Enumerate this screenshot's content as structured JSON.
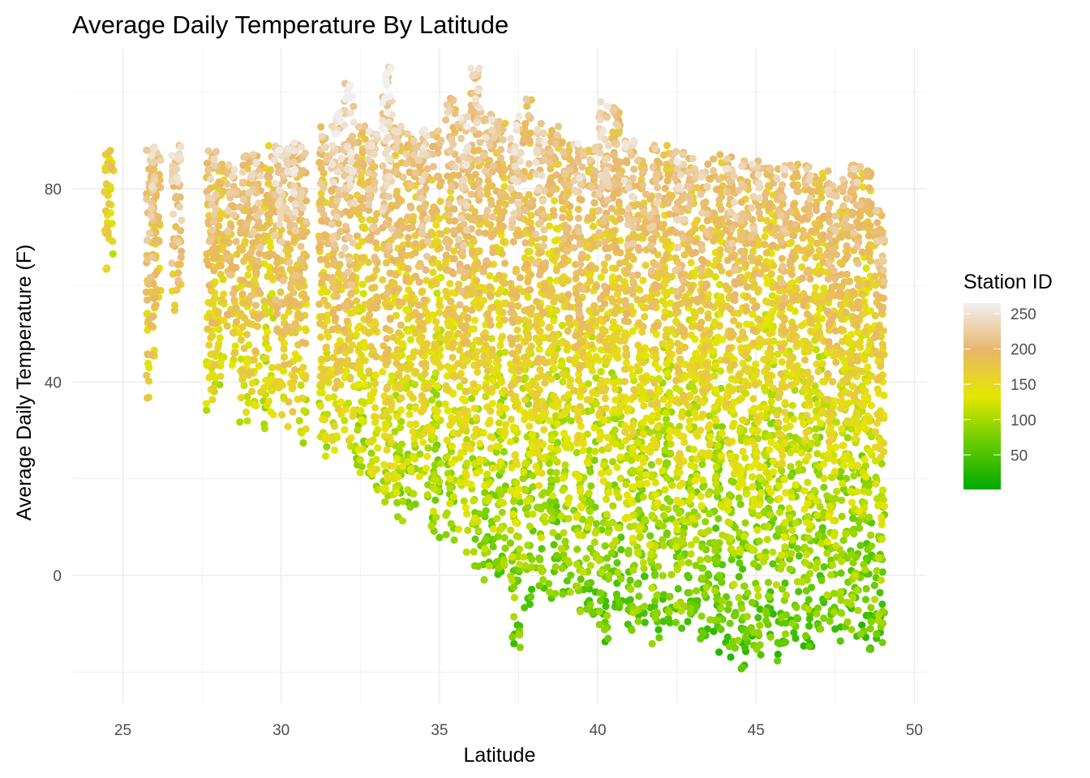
{
  "chart_data": {
    "type": "scatter",
    "title": "Average Daily Temperature By Latitude",
    "xlabel": "Latitude",
    "ylabel": "Average Daily Temperature (F)",
    "xlim": [
      23.4,
      50.4
    ],
    "ylim": [
      -26.5,
      109
    ],
    "x_ticks": [
      25,
      30,
      35,
      40,
      45,
      50
    ],
    "y_ticks": [
      0,
      40,
      80
    ],
    "grid": true,
    "legend": {
      "title": "Station ID",
      "placement": "right",
      "ticks": [
        50,
        100,
        150,
        200,
        250
      ],
      "range": [
        1,
        265
      ],
      "colors": [
        "#00aa00",
        "#66cc00",
        "#e6e600",
        "#e8b66b",
        "#f0f0f0"
      ]
    },
    "stations": [
      {
        "lat": 24.55,
        "t": [
          63,
          88
        ],
        "id": 175
      },
      {
        "lat": 25.9,
        "t": [
          36,
          89
        ],
        "id": 240
      },
      {
        "lat": 26.05,
        "t": [
          57,
          88
        ],
        "id": 215
      },
      {
        "lat": 26.7,
        "t": [
          54,
          89
        ],
        "id": 240
      },
      {
        "lat": 27.8,
        "t": [
          34,
          89
        ],
        "id": 230
      },
      {
        "lat": 28.05,
        "t": [
          39,
          87
        ],
        "id": 200
      },
      {
        "lat": 28.45,
        "t": [
          43,
          85
        ],
        "id": 235
      },
      {
        "lat": 28.85,
        "t": [
          31,
          87
        ],
        "id": 220
      },
      {
        "lat": 29.2,
        "t": [
          33,
          88
        ],
        "id": 240
      },
      {
        "lat": 29.6,
        "t": [
          30,
          89
        ],
        "id": 200
      },
      {
        "lat": 29.95,
        "t": [
          32,
          89
        ],
        "id": 245
      },
      {
        "lat": 30.3,
        "t": [
          30,
          90
        ],
        "id": 250
      },
      {
        "lat": 30.65,
        "t": [
          27,
          90
        ],
        "id": 230
      },
      {
        "lat": 31.35,
        "t": [
          24,
          93
        ],
        "id": 215
      },
      {
        "lat": 31.75,
        "t": [
          22,
          96
        ],
        "id": 240
      },
      {
        "lat": 32.15,
        "t": [
          26,
          102
        ],
        "id": 245
      },
      {
        "lat": 32.5,
        "t": [
          21,
          93
        ],
        "id": 200
      },
      {
        "lat": 32.9,
        "t": [
          17,
          92
        ],
        "id": 230
      },
      {
        "lat": 33.35,
        "t": [
          14,
          106
        ],
        "id": 240
      },
      {
        "lat": 33.7,
        "t": [
          11,
          93
        ],
        "id": 220
      },
      {
        "lat": 34.1,
        "t": [
          13,
          92
        ],
        "id": 210
      },
      {
        "lat": 34.5,
        "t": [
          12,
          93
        ],
        "id": 235
      },
      {
        "lat": 34.9,
        "t": [
          7,
          93
        ],
        "id": 200
      },
      {
        "lat": 35.35,
        "t": [
          6,
          99
        ],
        "id": 220
      },
      {
        "lat": 35.75,
        "t": [
          4,
          96
        ],
        "id": 240
      },
      {
        "lat": 36.15,
        "t": [
          1,
          105
        ],
        "id": 215
      },
      {
        "lat": 36.55,
        "t": [
          -1,
          96
        ],
        "id": 225
      },
      {
        "lat": 36.95,
        "t": [
          -2,
          94
        ],
        "id": 200
      },
      {
        "lat": 37.4,
        "t": [
          -16,
          95
        ],
        "id": 240
      },
      {
        "lat": 37.8,
        "t": [
          -7,
          99
        ],
        "id": 210
      },
      {
        "lat": 38.2,
        "t": [
          -4,
          94
        ],
        "id": 235
      },
      {
        "lat": 38.6,
        "t": [
          -5,
          93
        ],
        "id": 200
      },
      {
        "lat": 39.0,
        "t": [
          -6,
          91
        ],
        "id": 220
      },
      {
        "lat": 39.4,
        "t": [
          -8,
          90
        ],
        "id": 245
      },
      {
        "lat": 39.8,
        "t": [
          -9,
          89
        ],
        "id": 210
      },
      {
        "lat": 40.2,
        "t": [
          -14,
          98
        ],
        "id": 230
      },
      {
        "lat": 40.6,
        "t": [
          -10,
          97
        ],
        "id": 205
      },
      {
        "lat": 41.0,
        "t": [
          -12,
          90
        ],
        "id": 240
      },
      {
        "lat": 41.4,
        "t": [
          -11,
          87
        ],
        "id": 215
      },
      {
        "lat": 41.8,
        "t": [
          -17,
          89
        ],
        "id": 235
      },
      {
        "lat": 42.2,
        "t": [
          -13,
          89
        ],
        "id": 200
      },
      {
        "lat": 42.6,
        "t": [
          -14,
          88
        ],
        "id": 245
      },
      {
        "lat": 43.0,
        "t": [
          -12,
          87
        ],
        "id": 215
      },
      {
        "lat": 43.4,
        "t": [
          -15,
          86
        ],
        "id": 230
      },
      {
        "lat": 43.8,
        "t": [
          -16,
          88
        ],
        "id": 205
      },
      {
        "lat": 44.2,
        "t": [
          -18,
          87
        ],
        "id": 240
      },
      {
        "lat": 44.6,
        "t": [
          -20,
          86
        ],
        "id": 220
      },
      {
        "lat": 45.0,
        "t": [
          -17,
          86
        ],
        "id": 235
      },
      {
        "lat": 45.4,
        "t": [
          -16,
          85
        ],
        "id": 205
      },
      {
        "lat": 45.8,
        "t": [
          -19,
          86
        ],
        "id": 240
      },
      {
        "lat": 46.2,
        "t": [
          -14,
          86
        ],
        "id": 215
      },
      {
        "lat": 46.6,
        "t": [
          -15,
          85
        ],
        "id": 230
      },
      {
        "lat": 47.0,
        "t": [
          -13,
          84
        ],
        "id": 205
      },
      {
        "lat": 47.4,
        "t": [
          -12,
          84
        ],
        "id": 240
      },
      {
        "lat": 47.8,
        "t": [
          -14,
          83
        ],
        "id": 220
      },
      {
        "lat": 48.15,
        "t": [
          -15,
          85
        ],
        "id": 230
      },
      {
        "lat": 48.5,
        "t": [
          -17,
          84
        ],
        "id": 205
      },
      {
        "lat": 48.9,
        "t": [
          -14,
          76
        ],
        "id": 245
      }
    ]
  }
}
